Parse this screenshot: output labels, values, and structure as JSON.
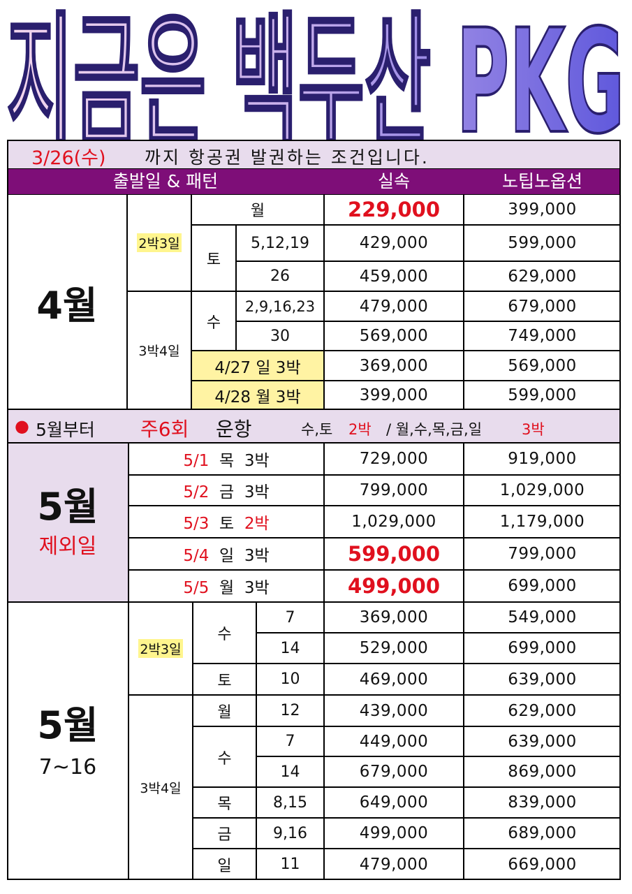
{
  "title": "지금은 백두산 PKG",
  "notice": {
    "date": "3/26(수)",
    "text": "까지 항공권 발권하는 조건입니다."
  },
  "header": {
    "col1": "출발일 & 패턴",
    "col2": "실속",
    "col3": "노팁노옵션"
  },
  "april": {
    "month": "4월",
    "pattern_2n3d": "2박3일",
    "pattern_3n4d": "3박4일",
    "rows": [
      {
        "day": "월",
        "date": "",
        "price1": "229,000",
        "price2": "399,000"
      },
      {
        "day": "토",
        "date": "5,12,19",
        "price1": "429,000",
        "price2": "599,000"
      },
      {
        "day": "",
        "date": "26",
        "price1": "459,000",
        "price2": "629,000"
      },
      {
        "day": "수",
        "date": "2,9,16,23",
        "price1": "479,000",
        "price2": "679,000"
      },
      {
        "day": "",
        "date": "30",
        "price1": "569,000",
        "price2": "749,000"
      },
      {
        "day": "",
        "date": "4/27 일 3박",
        "price1": "369,000",
        "price2": "569,000"
      },
      {
        "day": "",
        "date": "4/28 월 3박",
        "price1": "399,000",
        "price2": "599,000"
      }
    ]
  },
  "may_notice": {
    "bullet": "●",
    "part1": "5월부터",
    "part2": "주6회",
    "part3": "운항",
    "part4": "수,토",
    "part5": "2박",
    "part6": "/ 월,수,목,금,일",
    "part7": "3박"
  },
  "may_excl": {
    "month": "5월",
    "sub": "제외일",
    "rows": [
      {
        "date": "5/1",
        "day": "목",
        "nights": "3박",
        "price1": "729,000",
        "price2": "919,000"
      },
      {
        "date": "5/2",
        "day": "금",
        "nights": "3박",
        "price1": "799,000",
        "price2": "1,029,000"
      },
      {
        "date": "5/3",
        "day": "토",
        "nights": "2박",
        "price1": "1,029,000",
        "price2": "1,179,000"
      },
      {
        "date": "5/4",
        "day": "일",
        "nights": "3박",
        "price1": "599,000",
        "price2": "799,000"
      },
      {
        "date": "5/5",
        "day": "월",
        "nights": "3박",
        "price1": "499,000",
        "price2": "699,000"
      }
    ]
  },
  "may": {
    "month": "5월",
    "sub": "7~16",
    "pattern_2n3d": "2박3일",
    "pattern_3n4d": "3박4일",
    "rows": [
      {
        "day": "수",
        "date": "7",
        "price1": "369,000",
        "price2": "549,000"
      },
      {
        "day": "",
        "date": "14",
        "price1": "529,000",
        "price2": "699,000"
      },
      {
        "day": "토",
        "date": "10",
        "price1": "469,000",
        "price2": "639,000"
      },
      {
        "day": "월",
        "date": "12",
        "price1": "439,000",
        "price2": "629,000"
      },
      {
        "day": "수",
        "date": "7",
        "price1": "449,000",
        "price2": "639,000"
      },
      {
        "day": "",
        "date": "14",
        "price1": "679,000",
        "price2": "869,000"
      },
      {
        "day": "목",
        "date": "8,15",
        "price1": "649,000",
        "price2": "839,000"
      },
      {
        "day": "금",
        "date": "9,16",
        "price1": "499,000",
        "price2": "689,000"
      },
      {
        "day": "일",
        "date": "11",
        "price1": "479,000",
        "price2": "669,000"
      }
    ]
  },
  "colors": {
    "title_start": "#f4d6ec",
    "title_end": "#5e56d8",
    "title_stroke": "#2a1f6e",
    "header_bg": "#7e0e78",
    "note_bg": "#e8dced",
    "highlight": "#fff58e",
    "red": "#e0101e"
  }
}
